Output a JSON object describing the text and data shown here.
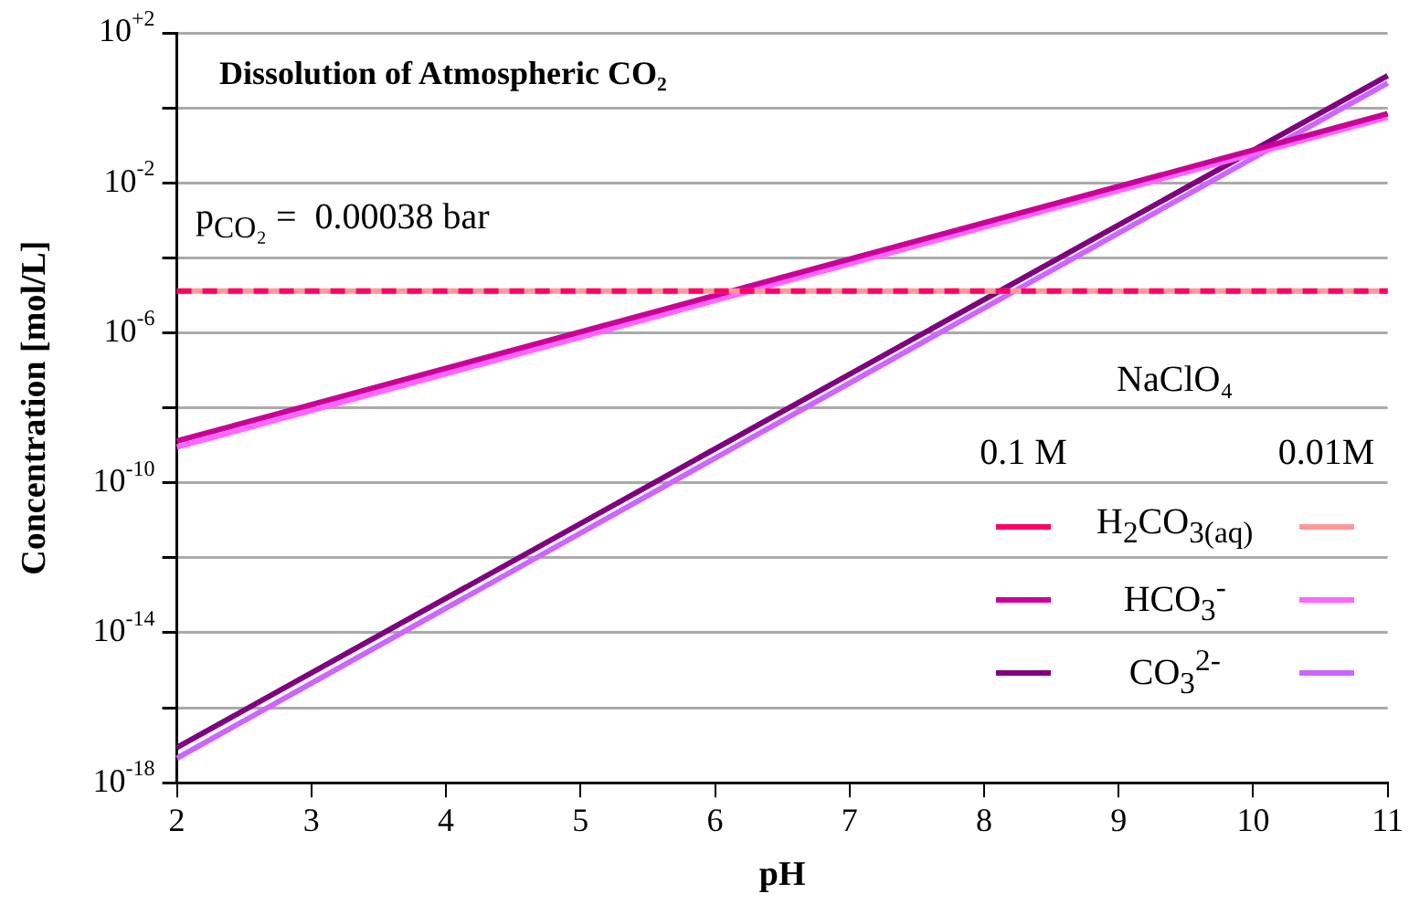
{
  "chart_data": {
    "type": "line",
    "title": "Dissolution of Atmospheric CO₂",
    "xlabel": "pH",
    "ylabel": "Concentration [mol/L]",
    "legend_title": "NaClO₄",
    "legend": "right",
    "log": "y",
    "grid": "y",
    "marker": "none",
    "xlim": [
      2,
      11
    ],
    "x": [
      2,
      11
    ],
    "xticks": [
      2,
      3,
      4,
      5,
      6,
      7,
      8,
      9,
      10,
      11
    ],
    "ylim": [
      1e-18,
      100
    ],
    "yticks": [
      {
        "value": 100,
        "label": "10$^{+2}$"
      },
      {
        "value": 1,
        "label": null
      },
      {
        "value": 0.01,
        "label": "10$^{-2}$"
      },
      {
        "value": 0.0001,
        "label": null
      },
      {
        "value": 1e-06,
        "label": "10$^{-6}$"
      },
      {
        "value": 1e-08,
        "label": null
      },
      {
        "value": 1e-10,
        "label": "10$^{-10}$"
      },
      {
        "value": 1e-12,
        "label": null
      },
      {
        "value": 1e-14,
        "label": "10$^{-14}$"
      },
      {
        "value": 1e-16,
        "label": null
      },
      {
        "value": 1e-18,
        "label": "10$^{-18}$"
      }
    ],
    "annotations": [
      "p$_{CO₂}$ =  0.00038 bar",
      "0.1 M",
      "0.01M"
    ],
    "series": [
      {
        "name": "H$_{2}$CO$_{3(aq)}$",
        "color": "#ff0066",
        "values": [
          1.3e-05,
          1.3e-05
        ],
        "line_style": "dashed"
      },
      {
        "color": "#ff9999",
        "values": [
          1.3e-05,
          1.3e-05
        ]
      },
      {
        "name": "HCO$_{3}$$^{-}$",
        "color": "#cc0099",
        "values": [
          1.3e-09,
          0.7
        ]
      },
      {
        "color": "#ff66ff",
        "values": [
          9e-10,
          0.56
        ]
      },
      {
        "name": "CO$_{3}$$^{2-}$",
        "color": "#800080",
        "values": [
          8.7e-18,
          7.2
        ]
      },
      {
        "color": "#cc66ff",
        "values": [
          4.5e-18,
          4.6
        ]
      }
    ]
  }
}
